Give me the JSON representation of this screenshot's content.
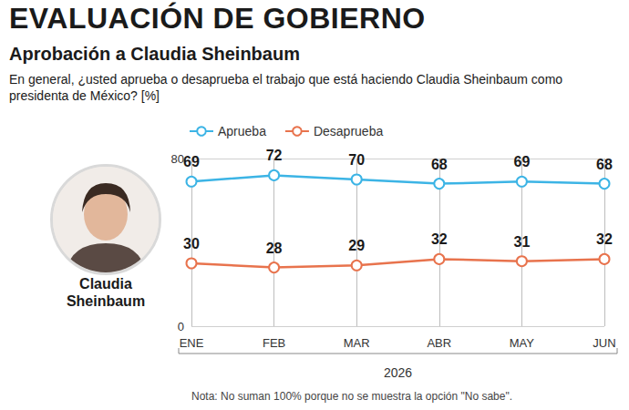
{
  "page": {
    "header": "EVALUACIÓN DE GOBIERNO",
    "photo_caption": "Claudia Sheinbaum",
    "note": "Nota: No suman 100% porque no se muestra la opción \"No sabe\"."
  },
  "chart_data": {
    "type": "line",
    "title": "Aprobación a Claudia Sheinbaum",
    "subtitle": "En general, ¿usted aprueba o desaprueba el trabajo que está haciendo Claudia Sheinbaum como presidenta de México? [%]",
    "categories": [
      "ENE",
      "FEB",
      "MAR",
      "ABR",
      "MAY",
      "JUN"
    ],
    "xlabel": "2026",
    "series": [
      {
        "name": "Aprueba",
        "color": "#3cb4e5",
        "values": [
          69,
          72,
          70,
          68,
          69,
          68
        ]
      },
      {
        "name": "Desaprueba",
        "color": "#e8734d",
        "values": [
          30,
          28,
          29,
          32,
          31,
          32
        ]
      }
    ],
    "ylim": [
      0,
      80
    ],
    "yticks": [
      0,
      80
    ],
    "grid": true,
    "legend": "top-left",
    "data_labels": true,
    "marker": "circle",
    "line_style": "solid"
  }
}
